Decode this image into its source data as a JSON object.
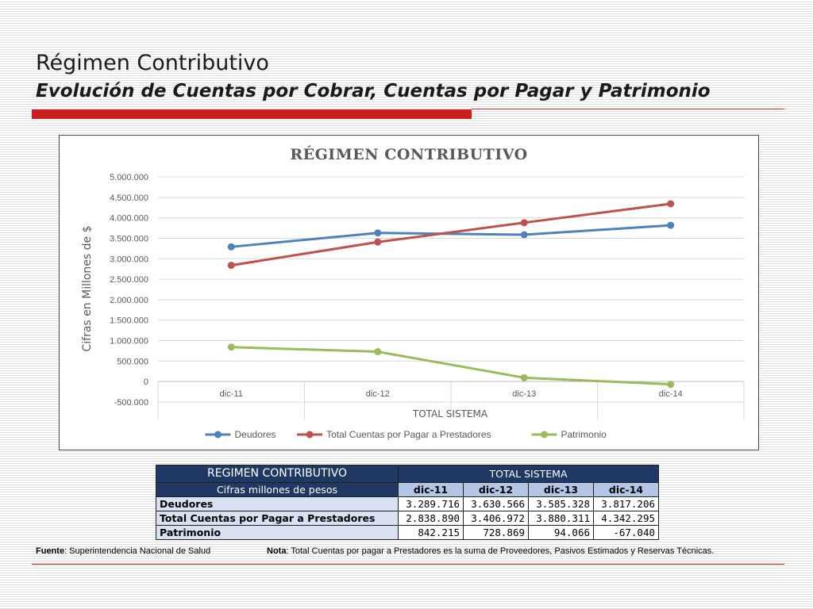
{
  "slide": {
    "title": "Régimen Contributivo",
    "subtitle": "Evolución de Cuentas por Cobrar, Cuentas por Pagar y Patrimonio"
  },
  "chart_data": {
    "type": "line",
    "title": "RÉGIMEN CONTRIBUTIVO",
    "xlabel": "TOTAL SISTEMA",
    "ylabel": "Cifras en Millones de $",
    "categories": [
      "dic-11",
      "dic-12",
      "dic-13",
      "dic-14"
    ],
    "ylim": [
      -500000,
      5000000
    ],
    "yticks": [
      "5.000.000",
      "4.500.000",
      "4.000.000",
      "3.500.000",
      "3.000.000",
      "2.500.000",
      "2.000.000",
      "1.500.000",
      "1.000.000",
      "500.000",
      "0",
      "-500.000"
    ],
    "ytick_values": [
      5000000,
      4500000,
      4000000,
      3500000,
      3000000,
      2500000,
      2000000,
      1500000,
      1000000,
      500000,
      0,
      -500000
    ],
    "legend_position": "bottom",
    "grid": true,
    "series": [
      {
        "name": "Deudores",
        "color": "#4f81bd",
        "values": [
          3289716,
          3630566,
          3585328,
          3817206
        ]
      },
      {
        "name": "Total Cuentas por Pagar a Prestadores",
        "color": "#c0504d",
        "values": [
          2838890,
          3406972,
          3880311,
          4342295
        ]
      },
      {
        "name": "Patrimonio",
        "color": "#9bbb59",
        "values": [
          842215,
          728869,
          94066,
          -67040
        ]
      }
    ]
  },
  "table": {
    "corner_title": "REGIMEN CONTRIBUTIVO",
    "group_header": "TOTAL SISTEMA",
    "units_label": "Cifras millones de pesos",
    "columns": [
      "dic-11",
      "dic-12",
      "dic-13",
      "dic-14"
    ],
    "rows": [
      {
        "label": "Deudores",
        "values": [
          "3.289.716",
          "3.630.566",
          "3.585.328",
          "3.817.206"
        ]
      },
      {
        "label": "Total Cuentas por Pagar a Prestadores",
        "values": [
          "2.838.890",
          "3.406.972",
          "3.880.311",
          "4.342.295"
        ]
      },
      {
        "label": "Patrimonio",
        "values": [
          "842.215",
          "728.869",
          "94.066",
          "-67.040"
        ]
      }
    ]
  },
  "footer": {
    "source_label": "Fuente",
    "source_text": ": Superintendencia Nacional de Salud",
    "note_label": "Nota",
    "note_text": ": Total Cuentas por pagar a Prestadores es la suma de Proveedores, Pasivos Estimados y Reservas Técnicas."
  }
}
